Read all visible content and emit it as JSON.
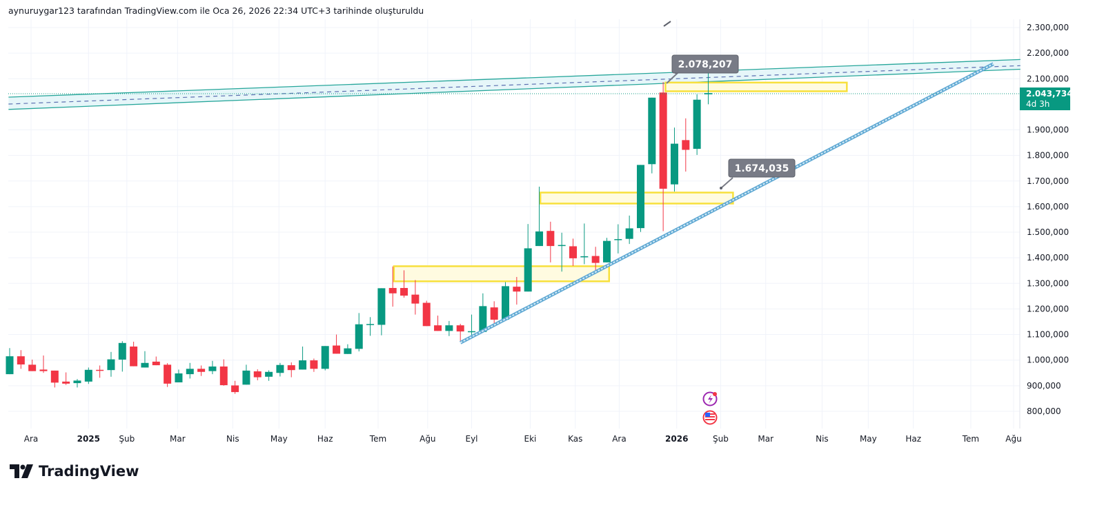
{
  "header": {
    "caption": "aynuruygar123 tarafından TradingView.com ile Oca 26, 2026 22:34 UTC+3 tarihinde oluşturuldu"
  },
  "branding": {
    "logo_text": "TradingView"
  },
  "colors": {
    "up": "#089981",
    "down": "#f23645",
    "grid": "#f0f3fa",
    "channel": "#26a69a",
    "channel_fill": "#e0f4f8",
    "trend": "#5fa8d3",
    "zone_border": "#f7e03c",
    "zone_fill": "#fffbe0",
    "callout": "#787b86",
    "last_price_bg": "#089981"
  },
  "price_badge": {
    "value": "2.043,734",
    "countdown": "4d 3h"
  },
  "annotations": [
    {
      "label": "2.078,207",
      "price": 2078207
    },
    {
      "label": "1.674,035",
      "price": 1674035
    }
  ],
  "events": [
    {
      "icon": "lightning-icon"
    },
    {
      "icon": "us-flag-icon"
    }
  ],
  "chart_data": {
    "type": "candlestick",
    "interval": "weekly",
    "value_scale": 1000,
    "y_ticks": [
      "2.300,000",
      "2.200,000",
      "2.100,000",
      "1.900,000",
      "1.800,000",
      "1.700,000",
      "1.600,000",
      "1.500,000",
      "1.400,000",
      "1.300,000",
      "1.200,000",
      "1.100,000",
      "1.000,000",
      "900,000",
      "800,000"
    ],
    "y_tick_values": [
      2300000,
      2200000,
      2100000,
      1900000,
      1800000,
      1700000,
      1600000,
      1500000,
      1400000,
      1300000,
      1200000,
      1100000,
      1000000,
      900000,
      800000
    ],
    "ylim": [
      740000,
      2380000
    ],
    "x_ticks": [
      {
        "label": "Ara",
        "bar": 1.9
      },
      {
        "label": "2025",
        "bar": 7,
        "bold": true
      },
      {
        "label": "Şub",
        "bar": 10.4
      },
      {
        "label": "Mar",
        "bar": 14.9
      },
      {
        "label": "Nis",
        "bar": 19.8
      },
      {
        "label": "May",
        "bar": 23.9
      },
      {
        "label": "Haz",
        "bar": 28
      },
      {
        "label": "Tem",
        "bar": 32.7
      },
      {
        "label": "Ağu",
        "bar": 37.1
      },
      {
        "label": "Eyl",
        "bar": 41
      },
      {
        "label": "Eki",
        "bar": 46.2
      },
      {
        "label": "Kas",
        "bar": 50.2
      },
      {
        "label": "Ara",
        "bar": 54.1
      },
      {
        "label": "2026",
        "bar": 59.2,
        "bold": true
      },
      {
        "label": "Şub",
        "bar": 63.1
      },
      {
        "label": "Mar",
        "bar": 67.1
      },
      {
        "label": "Nis",
        "bar": 72.1
      },
      {
        "label": "May",
        "bar": 76.2
      },
      {
        "label": "Haz",
        "bar": 80.2
      },
      {
        "label": "Tem",
        "bar": 85.3
      },
      {
        "label": "Ağu",
        "bar": 89.1
      }
    ],
    "ohlc_columns": [
      "open",
      "high",
      "low",
      "close"
    ],
    "ohlc": [
      [
        945,
        1047,
        945,
        1015
      ],
      [
        1015,
        1039,
        966,
        983
      ],
      [
        982,
        1002,
        957,
        957
      ],
      [
        963,
        1018,
        950,
        957
      ],
      [
        959,
        959,
        893,
        912
      ],
      [
        916,
        952,
        903,
        908
      ],
      [
        910,
        926,
        893,
        920
      ],
      [
        916,
        971,
        907,
        962
      ],
      [
        962,
        979,
        931,
        961
      ],
      [
        961,
        1032,
        935,
        1003
      ],
      [
        1002,
        1074,
        955,
        1067
      ],
      [
        1053,
        1072,
        976,
        976
      ],
      [
        971,
        1035,
        971,
        989
      ],
      [
        994,
        1014,
        980,
        980
      ],
      [
        982,
        988,
        895,
        908
      ],
      [
        913,
        963,
        913,
        948
      ],
      [
        945,
        989,
        928,
        966
      ],
      [
        966,
        979,
        938,
        954
      ],
      [
        957,
        997,
        945,
        975
      ],
      [
        975,
        1003,
        900,
        902
      ],
      [
        901,
        919,
        868,
        875
      ],
      [
        904,
        982,
        904,
        959
      ],
      [
        956,
        964,
        921,
        933
      ],
      [
        935,
        960,
        919,
        954
      ],
      [
        950,
        989,
        936,
        981
      ],
      [
        980,
        991,
        933,
        961
      ],
      [
        963,
        1053,
        963,
        999
      ],
      [
        999,
        1006,
        954,
        966
      ],
      [
        966,
        1055,
        960,
        1055
      ],
      [
        1057,
        1100,
        1025,
        1025
      ],
      [
        1024,
        1062,
        1024,
        1046
      ],
      [
        1044,
        1184,
        1034,
        1140
      ],
      [
        1140,
        1168,
        1095,
        1141
      ],
      [
        1138,
        1281,
        1097,
        1281
      ],
      [
        1282,
        1366,
        1209,
        1261
      ],
      [
        1282,
        1351,
        1244,
        1252
      ],
      [
        1256,
        1313,
        1178,
        1221
      ],
      [
        1224,
        1232,
        1133,
        1133
      ],
      [
        1136,
        1174,
        1114,
        1114
      ],
      [
        1114,
        1153,
        1094,
        1136
      ],
      [
        1136,
        1142,
        1075,
        1112
      ],
      [
        1112,
        1178,
        1094,
        1113
      ],
      [
        1110,
        1261,
        1110,
        1211
      ],
      [
        1206,
        1230,
        1142,
        1158
      ],
      [
        1158,
        1305,
        1158,
        1289
      ],
      [
        1287,
        1325,
        1217,
        1268
      ],
      [
        1268,
        1532,
        1268,
        1437
      ],
      [
        1446,
        1678,
        1446,
        1503
      ],
      [
        1505,
        1541,
        1382,
        1446
      ],
      [
        1449,
        1498,
        1346,
        1450
      ],
      [
        1445,
        1475,
        1368,
        1398
      ],
      [
        1404,
        1534,
        1375,
        1406
      ],
      [
        1407,
        1443,
        1338,
        1380
      ],
      [
        1382,
        1478,
        1382,
        1466
      ],
      [
        1472,
        1531,
        1417,
        1473
      ],
      [
        1474,
        1565,
        1454,
        1515
      ],
      [
        1516,
        1763,
        1501,
        1763
      ],
      [
        1766,
        2026,
        1730,
        2026
      ],
      [
        2046,
        2087,
        1504,
        1670
      ],
      [
        1687,
        1909,
        1659,
        1846
      ],
      [
        1860,
        1945,
        1737,
        1822
      ],
      [
        1826,
        2039,
        1802,
        2018
      ],
      [
        2039,
        2165,
        2000,
        2043.734
      ]
    ],
    "drawings": {
      "channel": {
        "start": {
          "bar": -0.1,
          "top": 2028000,
          "mid": 2001000,
          "bottom": 1980000
        },
        "end": {
          "bar": 89.7,
          "top": 2175000,
          "mid": 2151000,
          "bottom": 2137000
        }
      },
      "trendline": {
        "start": {
          "bar": 40,
          "price": 1068000
        },
        "end": {
          "bar": 87.3,
          "price": 2158000
        }
      },
      "zones": [
        {
          "from_bar": 34.1,
          "to_bar": 53.2,
          "top": 1367000,
          "bottom": 1308000
        },
        {
          "from_bar": 47.1,
          "to_bar": 64.2,
          "top": 1655000,
          "bottom": 1612000
        },
        {
          "from_bar": 58.2,
          "to_bar": 74.3,
          "top": 2085000,
          "bottom": 2051000
        }
      ]
    }
  }
}
